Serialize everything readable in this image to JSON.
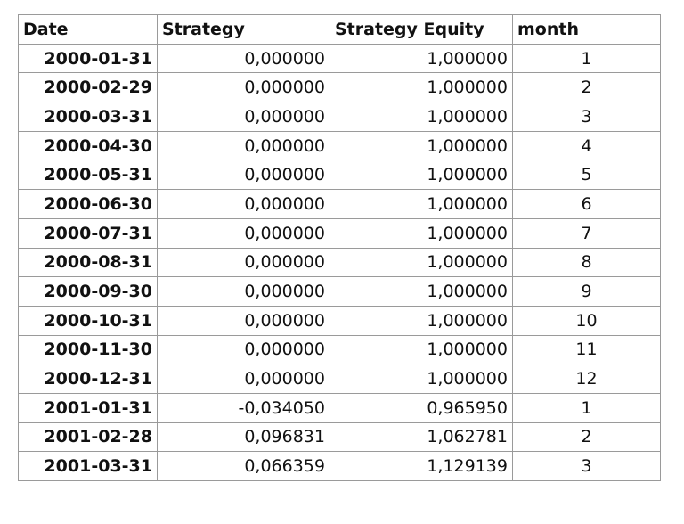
{
  "table": {
    "headers": {
      "date": "Date",
      "strategy": "Strategy",
      "equity": "Strategy Equity",
      "month": "month"
    },
    "rows": [
      {
        "date": "2000-01-31",
        "strategy": "0,000000",
        "equity": "1,000000",
        "month": "1"
      },
      {
        "date": "2000-02-29",
        "strategy": "0,000000",
        "equity": "1,000000",
        "month": "2"
      },
      {
        "date": "2000-03-31",
        "strategy": "0,000000",
        "equity": "1,000000",
        "month": "3"
      },
      {
        "date": "2000-04-30",
        "strategy": "0,000000",
        "equity": "1,000000",
        "month": "4"
      },
      {
        "date": "2000-05-31",
        "strategy": "0,000000",
        "equity": "1,000000",
        "month": "5"
      },
      {
        "date": "2000-06-30",
        "strategy": "0,000000",
        "equity": "1,000000",
        "month": "6"
      },
      {
        "date": "2000-07-31",
        "strategy": "0,000000",
        "equity": "1,000000",
        "month": "7"
      },
      {
        "date": "2000-08-31",
        "strategy": "0,000000",
        "equity": "1,000000",
        "month": "8"
      },
      {
        "date": "2000-09-30",
        "strategy": "0,000000",
        "equity": "1,000000",
        "month": "9"
      },
      {
        "date": "2000-10-31",
        "strategy": "0,000000",
        "equity": "1,000000",
        "month": "10"
      },
      {
        "date": "2000-11-30",
        "strategy": "0,000000",
        "equity": "1,000000",
        "month": "11"
      },
      {
        "date": "2000-12-31",
        "strategy": "0,000000",
        "equity": "1,000000",
        "month": "12"
      },
      {
        "date": "2001-01-31",
        "strategy": "-0,034050",
        "equity": "0,965950",
        "month": "1"
      },
      {
        "date": "2001-02-28",
        "strategy": "0,096831",
        "equity": "1,062781",
        "month": "2"
      },
      {
        "date": "2001-03-31",
        "strategy": "0,066359",
        "equity": "1,129139",
        "month": "3"
      }
    ]
  }
}
